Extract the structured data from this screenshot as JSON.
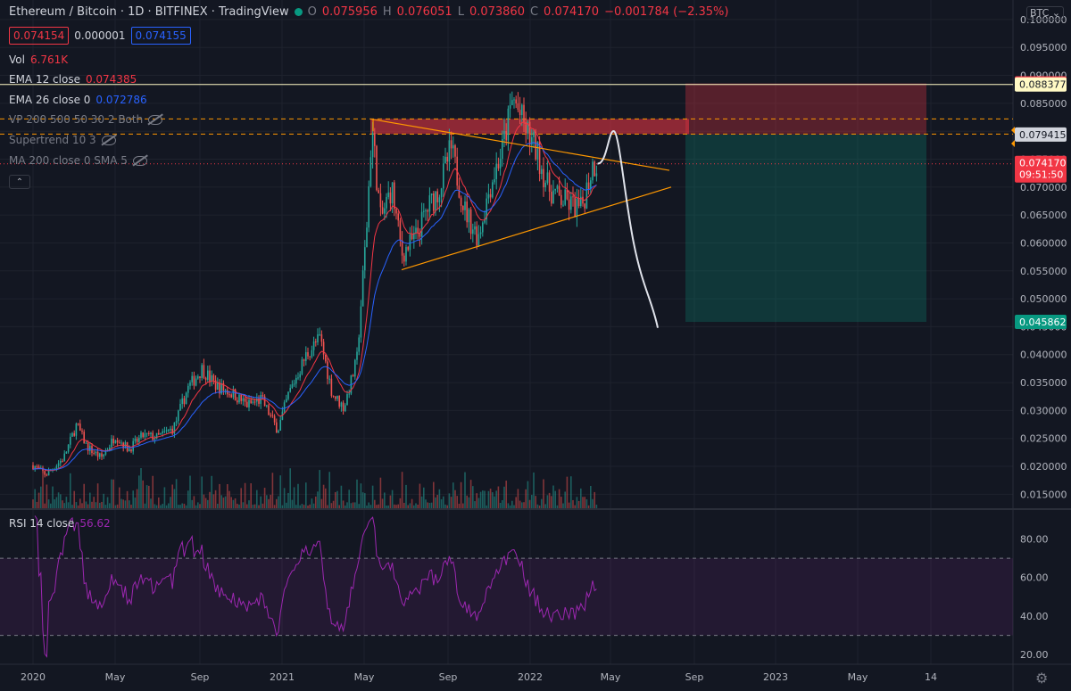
{
  "header": {
    "title": "Ethereum / Bitcoin · 1D · BITFINEX · TradingView",
    "ohlc": {
      "O": "0.075956",
      "H": "0.076051",
      "L": "0.073860",
      "C": "0.074170",
      "change": "−0.001784 (−2.35%)"
    },
    "bid": "0.074154",
    "spread": "0.000001",
    "ask": "0.074155",
    "currency": "BTC"
  },
  "indicators": {
    "vol": {
      "label": "Vol",
      "value": "6.761K"
    },
    "ema12": {
      "label": "EMA 12 close",
      "value": "0.074385",
      "color": "#f23645"
    },
    "ema26": {
      "label": "EMA 26 close 0",
      "value": "0.072786",
      "color": "#2962ff"
    },
    "vp": {
      "label": "VP 200 500 50 30 2 Both"
    },
    "supertrend": {
      "label": "Supertrend 10 3"
    },
    "ma200": {
      "label": "MA 200 close 0 SMA 5"
    },
    "rsi": {
      "label": "RSI 14 close",
      "value": "56.62",
      "color": "#9c27b0"
    }
  },
  "chart_data": {
    "type": "candlestick",
    "x_ticks": [
      "2020",
      "May",
      "Sep",
      "2021",
      "May",
      "Sep",
      "2022",
      "May",
      "Sep",
      "2023",
      "May",
      "14"
    ],
    "y_ticks": [
      "0.100000",
      "0.095000",
      "0.090000",
      "0.085000",
      "0.080000",
      "0.075000",
      "0.070000",
      "0.065000",
      "0.060000",
      "0.055000",
      "0.050000",
      "0.045000",
      "0.040000",
      "0.035000",
      "0.030000",
      "0.025000",
      "0.020000",
      "0.015000"
    ],
    "y_range": [
      0.0125,
      0.1035
    ],
    "price_path": [
      [
        "2020-01-01",
        0.0202
      ],
      [
        "2020-01-20",
        0.0185
      ],
      [
        "2020-02-15",
        0.0215
      ],
      [
        "2020-03-05",
        0.0275
      ],
      [
        "2020-03-20",
        0.0235
      ],
      [
        "2020-04-10",
        0.0215
      ],
      [
        "2020-05-01",
        0.0255
      ],
      [
        "2020-05-20",
        0.023
      ],
      [
        "2020-06-10",
        0.0255
      ],
      [
        "2020-07-01",
        0.0252
      ],
      [
        "2020-07-25",
        0.0268
      ],
      [
        "2020-08-15",
        0.034
      ],
      [
        "2020-09-05",
        0.0375
      ],
      [
        "2020-09-25",
        0.0345
      ],
      [
        "2020-10-20",
        0.033
      ],
      [
        "2020-11-10",
        0.031
      ],
      [
        "2020-12-01",
        0.032
      ],
      [
        "2020-12-25",
        0.0265
      ],
      [
        "2021-01-10",
        0.033
      ],
      [
        "2021-02-05",
        0.04
      ],
      [
        "2021-02-25",
        0.043
      ],
      [
        "2021-03-15",
        0.033
      ],
      [
        "2021-04-01",
        0.0305
      ],
      [
        "2021-04-20",
        0.039
      ],
      [
        "2021-05-05",
        0.064
      ],
      [
        "2021-05-12",
        0.081
      ],
      [
        "2021-05-25",
        0.064
      ],
      [
        "2021-06-10",
        0.07
      ],
      [
        "2021-06-25",
        0.058
      ],
      [
        "2021-07-15",
        0.061
      ],
      [
        "2021-08-01",
        0.066
      ],
      [
        "2021-08-20",
        0.07
      ],
      [
        "2021-09-05",
        0.077
      ],
      [
        "2021-09-25",
        0.066
      ],
      [
        "2021-10-15",
        0.061
      ],
      [
        "2021-11-01",
        0.07
      ],
      [
        "2021-11-20",
        0.077
      ],
      [
        "2021-12-05",
        0.086
      ],
      [
        "2021-12-25",
        0.08
      ],
      [
        "2022-01-10",
        0.076
      ],
      [
        "2022-01-25",
        0.07
      ],
      [
        "2022-02-10",
        0.068
      ],
      [
        "2022-02-25",
        0.067
      ],
      [
        "2022-03-15",
        0.066
      ],
      [
        "2022-04-01",
        0.074
      ],
      [
        "2022-04-08",
        0.07417
      ]
    ],
    "levels": {
      "0.088570": "#f23645",
      "0.088377": "#fff9c4",
      "0.079415": "#434651",
      "0.074170": "#f23645",
      "0.045862": "#089981"
    },
    "price_labels": {
      "last": "0.074170",
      "countdown": "09:51:50"
    },
    "rsi_ticks": [
      "80.00",
      "60.00",
      "40.00",
      "20.00"
    ],
    "rsi_range": [
      15,
      95
    ],
    "rsi_bands": [
      70,
      30
    ]
  },
  "colors": {
    "bg": "#131722",
    "grid": "#1e222d",
    "up": "#26a69a",
    "down": "#ef5350",
    "ema12": "#f23645",
    "ema26": "#2962ff",
    "triangle": "#ff9800",
    "rsi": "#9c27b0"
  }
}
